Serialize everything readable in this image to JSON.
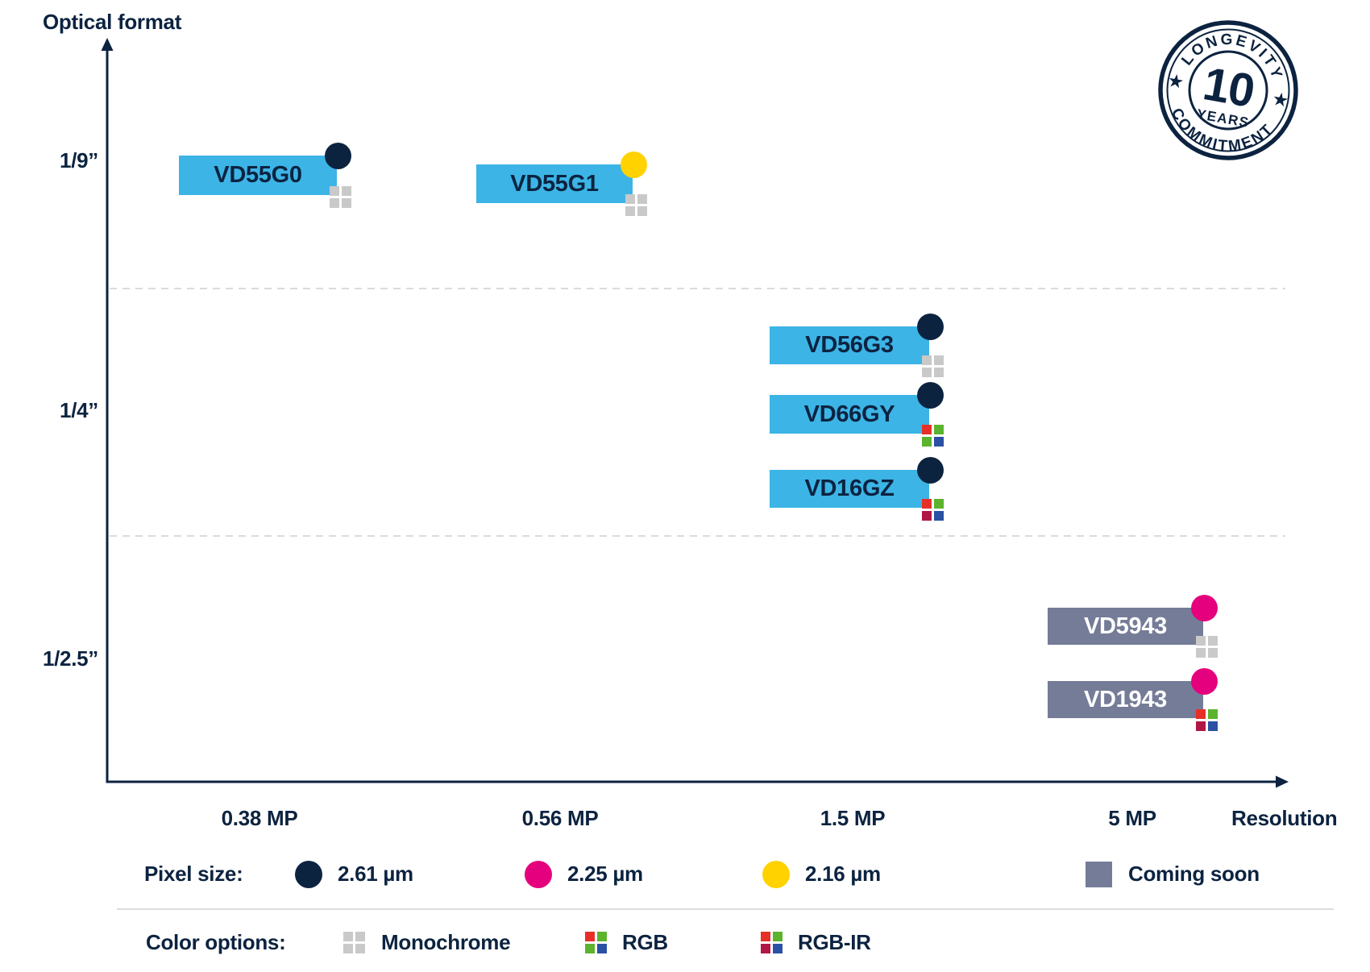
{
  "titles": {
    "y_axis": "Optical format",
    "x_axis": "Resolution"
  },
  "chart_data": {
    "type": "scatter",
    "xlabel": "Resolution",
    "ylabel": "Optical format",
    "x_ticks": [
      "0.38 MP",
      "0.56 MP",
      "1.5 MP",
      "5 MP"
    ],
    "y_ticks": [
      "1/9”",
      "1/4”",
      "1/2.5”"
    ],
    "legend_position": "bottom",
    "products": [
      {
        "name": "VD55G0",
        "optical_format": "1/9”",
        "resolution": "0.38 MP",
        "pixel_size": "2.61 µm",
        "color_option": "Monochrome",
        "coming_soon": false
      },
      {
        "name": "VD55G1",
        "optical_format": "1/9”",
        "resolution": "0.56 MP",
        "pixel_size": "2.16 µm",
        "color_option": "Monochrome",
        "coming_soon": false
      },
      {
        "name": "VD56G3",
        "optical_format": "1/4”",
        "resolution": "1.5 MP",
        "pixel_size": "2.61 µm",
        "color_option": "Monochrome",
        "coming_soon": false
      },
      {
        "name": "VD66GY",
        "optical_format": "1/4”",
        "resolution": "1.5 MP",
        "pixel_size": "2.61 µm",
        "color_option": "RGB",
        "coming_soon": false
      },
      {
        "name": "VD16GZ",
        "optical_format": "1/4”",
        "resolution": "1.5 MP",
        "pixel_size": "2.61 µm",
        "color_option": "RGB-IR",
        "coming_soon": false
      },
      {
        "name": "VD5943",
        "optical_format": "1/2.5”",
        "resolution": "5 MP",
        "pixel_size": "2.25 µm",
        "color_option": "Monochrome",
        "coming_soon": true
      },
      {
        "name": "VD1943",
        "optical_format": "1/2.5”",
        "resolution": "5 MP",
        "pixel_size": "2.25 µm",
        "color_option": "RGB-IR",
        "coming_soon": true
      }
    ]
  },
  "badge": {
    "arc_top": "LONGEVITY",
    "number": "10",
    "sub": "YEARS",
    "arc_bottom": "COMMITMENT",
    "star": "★"
  },
  "legend": {
    "pixel_size_label": "Pixel size:",
    "pixel_sizes": [
      {
        "label": "2.61 µm",
        "color_key": "navy"
      },
      {
        "label": "2.25 µm",
        "color_key": "magenta"
      },
      {
        "label": "2.16 µm",
        "color_key": "yellow"
      }
    ],
    "coming_soon_label": "Coming soon",
    "color_options_label": "Color options:",
    "color_options": [
      {
        "label": "Monochrome"
      },
      {
        "label": "RGB"
      },
      {
        "label": "RGB-IR"
      }
    ]
  },
  "colors": {
    "navy": "#0c2340",
    "bar_blue": "#3cb4e6",
    "bar_gray": "#757c97",
    "magenta": "#e5007d",
    "yellow": "#ffd200",
    "mono_gray": "#c9c9c9",
    "rgb_red": "#e63027",
    "rgb_green": "#5cb32e",
    "rgb_blue": "#2a51a3",
    "ir_crimson": "#b01744",
    "dashed_line": "#cfcfcf"
  }
}
